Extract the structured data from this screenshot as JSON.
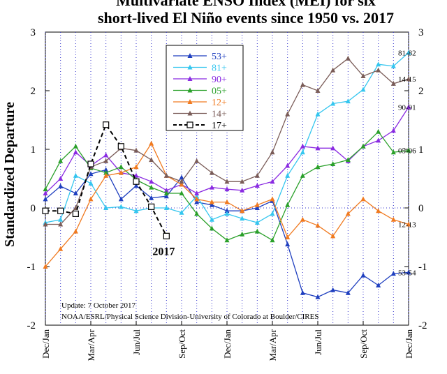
{
  "chart_data": {
    "type": "line",
    "title": "Multivariate ENSO Index (MEI) for six",
    "subtitle": "short-lived El Niño events since 1950 vs. 2017",
    "ylabel": "Standardized Departure",
    "xlabel": "",
    "ylim": [
      -2,
      3
    ],
    "yticks": [
      "-2",
      "-1",
      "0",
      "1",
      "2",
      "3"
    ],
    "y_tick_values": [
      -2,
      -1,
      0,
      1,
      2,
      3
    ],
    "x_tick_labels": [
      "Dec/Jan",
      "Mar/Apr",
      "Jun/Jul",
      "Sep/Oct",
      "Dec/Jan",
      "Mar/Apr",
      "Jun/Jul",
      "Sep/Oct",
      "Dec/Jan"
    ],
    "x_count": 25,
    "grid": "vertical dotted, every bi-monthly season",
    "legend_position": "top-center",
    "series": [
      {
        "name": "53+",
        "color": "#1f3fbf",
        "end_label": "53-54",
        "values": [
          0.15,
          0.37,
          0.25,
          0.58,
          0.65,
          0.15,
          0.38,
          0.17,
          0.2,
          0.52,
          0.1,
          0.05,
          -0.05,
          -0.05,
          0.0,
          0.12,
          -0.62,
          -1.45,
          -1.52,
          -1.4,
          -1.45,
          -1.15,
          -1.32,
          -1.12,
          -1.1
        ]
      },
      {
        "name": "81+",
        "color": "#35c6ef",
        "end_label": "81-82",
        "values": [
          -0.25,
          -0.2,
          0.55,
          0.42,
          0.0,
          0.02,
          -0.05,
          0.0,
          0.0,
          -0.08,
          0.2,
          -0.2,
          -0.1,
          -0.18,
          -0.25,
          -0.1,
          0.55,
          0.95,
          1.6,
          1.78,
          1.82,
          2.02,
          2.45,
          2.42,
          2.65
        ]
      },
      {
        "name": "90+",
        "color": "#8a2be2",
        "end_label": "90-91",
        "values": [
          0.25,
          0.5,
          0.95,
          0.72,
          0.9,
          0.6,
          0.55,
          0.45,
          0.3,
          0.4,
          0.25,
          0.35,
          0.32,
          0.3,
          0.38,
          0.45,
          0.72,
          1.05,
          1.02,
          1.02,
          0.8,
          1.05,
          1.15,
          1.32,
          1.72
        ]
      },
      {
        "name": "05+",
        "color": "#2aa02a",
        "end_label": "05-06",
        "values": [
          0.32,
          0.8,
          1.05,
          0.68,
          0.6,
          0.7,
          0.48,
          0.35,
          0.25,
          0.25,
          -0.1,
          -0.35,
          -0.55,
          -0.45,
          -0.4,
          -0.55,
          0.05,
          0.55,
          0.7,
          0.75,
          0.82,
          1.05,
          1.3,
          0.95,
          0.98
        ]
      },
      {
        "name": "12+",
        "color": "#f07a20",
        "end_label": "12-13",
        "values": [
          -1.0,
          -0.7,
          -0.4,
          0.15,
          0.55,
          0.6,
          0.7,
          1.1,
          0.55,
          0.4,
          0.15,
          0.1,
          0.1,
          -0.05,
          0.05,
          0.15,
          -0.5,
          -0.2,
          -0.3,
          -0.48,
          -0.1,
          0.15,
          -0.05,
          -0.2,
          -0.28
        ]
      },
      {
        "name": "14+",
        "color": "#7a5c58",
        "end_label": "14-15",
        "values": [
          -0.28,
          -0.28,
          0.0,
          0.7,
          0.8,
          1.02,
          0.98,
          0.82,
          0.55,
          0.45,
          0.8,
          0.6,
          0.45,
          0.45,
          0.55,
          0.95,
          1.6,
          2.1,
          2.0,
          2.35,
          2.55,
          2.25,
          2.35,
          2.12,
          2.2
        ]
      },
      {
        "name": "17+",
        "color": "#000000",
        "dashed": true,
        "end_label": "2017",
        "values": [
          -0.05,
          -0.05,
          -0.1,
          0.75,
          1.42,
          1.05,
          0.45,
          0.02,
          -0.48
        ]
      }
    ],
    "annotations": [
      "Update: 7 October 2017",
      "NOAA/ESRL/Physical Science Division-University of Colorado at Boulder/CIRES"
    ]
  }
}
